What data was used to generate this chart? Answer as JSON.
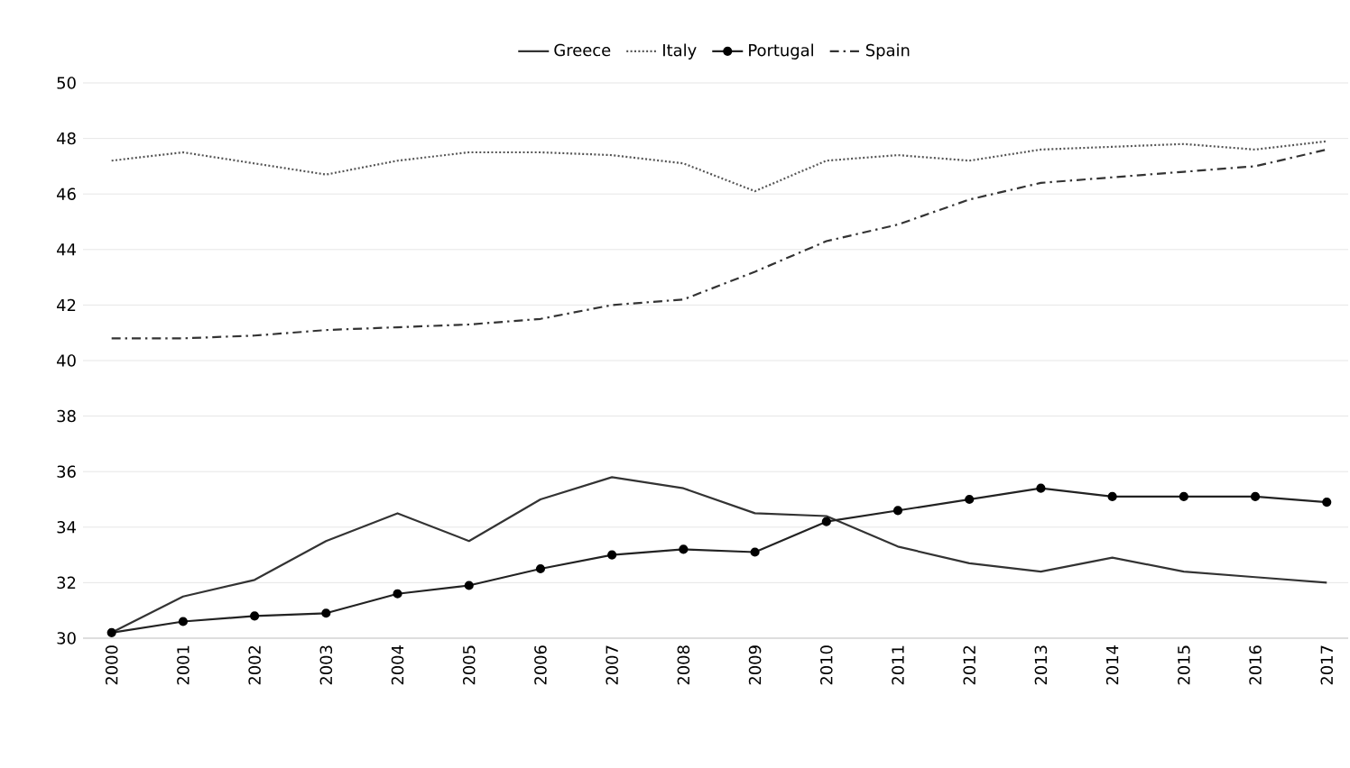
{
  "chart_data": {
    "type": "line",
    "categories": [
      "2000",
      "2001",
      "2002",
      "2003",
      "2004",
      "2005",
      "2006",
      "2007",
      "2008",
      "2009",
      "2010",
      "2011",
      "2012",
      "2013",
      "2014",
      "2015",
      "2016",
      "2017"
    ],
    "series": [
      {
        "name": "Greece",
        "color": "#333333",
        "line_style": "solid",
        "marker": "none",
        "values": [
          30.2,
          31.5,
          32.1,
          33.5,
          34.5,
          33.5,
          35.0,
          35.8,
          35.4,
          34.5,
          34.4,
          33.3,
          32.7,
          32.4,
          32.9,
          32.4,
          32.2,
          32.0
        ]
      },
      {
        "name": "Italy",
        "color": "#555555",
        "line_style": "dotted",
        "marker": "none",
        "values": [
          47.2,
          47.5,
          47.1,
          46.7,
          47.2,
          47.5,
          47.5,
          47.4,
          47.1,
          46.1,
          47.2,
          47.4,
          47.2,
          47.6,
          47.7,
          47.8,
          47.6,
          47.9
        ]
      },
      {
        "name": "Portugal",
        "color": "#222222",
        "line_style": "solid",
        "marker": "circle",
        "values": [
          30.2,
          30.6,
          30.8,
          30.9,
          31.6,
          31.9,
          32.5,
          33.0,
          33.2,
          33.1,
          34.2,
          34.6,
          35.0,
          35.4,
          35.1,
          35.1,
          35.1,
          34.9
        ]
      },
      {
        "name": "Spain",
        "color": "#333333",
        "line_style": "dashed",
        "marker": "none",
        "values": [
          40.8,
          40.8,
          40.9,
          41.1,
          41.2,
          41.3,
          41.5,
          42.0,
          42.2,
          43.2,
          44.3,
          44.9,
          45.8,
          46.4,
          46.6,
          46.8,
          47.0,
          47.6
        ]
      }
    ],
    "ylim": [
      30,
      50
    ],
    "yticks": [
      30,
      32,
      34,
      36,
      38,
      40,
      42,
      44,
      46,
      48,
      50
    ],
    "grid": "y",
    "legend": "top"
  }
}
